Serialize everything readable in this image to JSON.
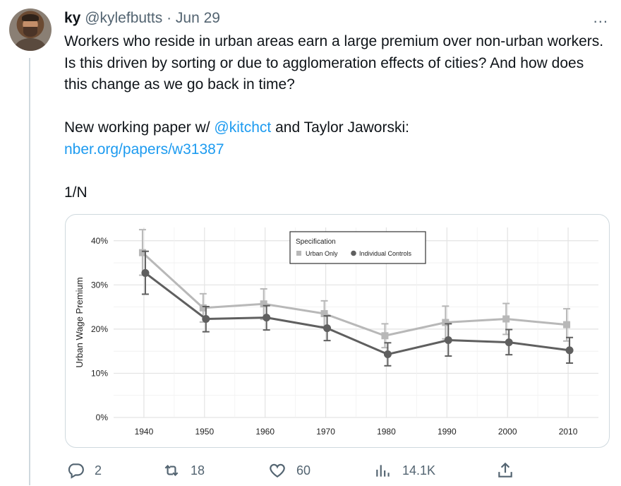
{
  "tweet": {
    "author_name": "ky",
    "handle": "@kylefbutts",
    "separator": "·",
    "date": "Jun 29",
    "text_p1": "Workers who reside in urban areas earn a large premium over non-urban workers. Is this driven by sorting or due to agglomeration effects of cities? And how does this change as we go back in time?",
    "text_p2_prefix": "New working paper w/ ",
    "mention": "@kitchct",
    "text_p2_suffix": " and Taylor Jaworski:",
    "link": "nber.org/papers/w31387",
    "thread_marker": "1/N",
    "more_icon": "..."
  },
  "actions": {
    "reply_count": "2",
    "retweet_count": "18",
    "like_count": "60",
    "views_count": "14.1K"
  },
  "icons": [
    "avatar",
    "more-icon",
    "reply-icon",
    "retweet-icon",
    "like-icon",
    "views-icon",
    "share-icon"
  ],
  "colors": {
    "link": "#1d9bf0",
    "muted": "#536471",
    "urban_only": "#b8b8b8",
    "individual_controls": "#5f5f5f"
  },
  "chart_data": {
    "type": "line",
    "ylabel": "Urban Wage Premium",
    "xlabel": "",
    "x": [
      1940,
      1950,
      1960,
      1970,
      1980,
      1990,
      2000,
      2010
    ],
    "y_ticks": [
      "0%",
      "10%",
      "20%",
      "30%",
      "40%"
    ],
    "ylim": [
      0,
      43
    ],
    "grid": true,
    "legend": {
      "title": "Specification",
      "placement": "top-center"
    },
    "series": [
      {
        "name": "Urban Only",
        "marker": "square",
        "color": "#b8b8b8",
        "values": [
          37.3,
          24.8,
          25.7,
          23.5,
          18.5,
          21.5,
          22.3,
          21.0
        ],
        "lower": [
          32.2,
          21.6,
          22.2,
          20.6,
          15.8,
          17.8,
          18.8,
          17.3
        ],
        "upper": [
          42.5,
          28.0,
          29.1,
          26.4,
          21.2,
          25.2,
          25.8,
          24.6
        ]
      },
      {
        "name": "Individual Controls",
        "marker": "circle",
        "color": "#5f5f5f",
        "values": [
          32.7,
          22.3,
          22.6,
          20.2,
          14.3,
          17.5,
          17.0,
          15.2
        ],
        "lower": [
          27.9,
          19.4,
          19.8,
          17.4,
          11.7,
          13.9,
          14.2,
          12.3
        ],
        "upper": [
          37.6,
          25.1,
          25.3,
          23.0,
          16.9,
          21.2,
          19.9,
          18.1
        ]
      }
    ]
  }
}
